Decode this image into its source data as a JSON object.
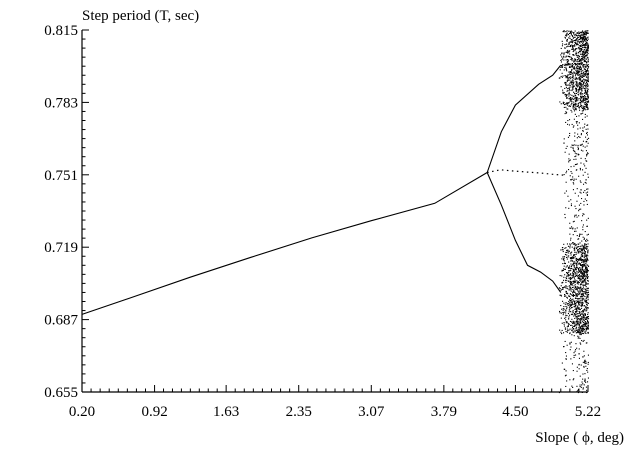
{
  "chart_data": {
    "type": "line",
    "title": "",
    "ylabel": "Step period (T, sec)",
    "xlabel": "Slope ( ϕ, deg)",
    "xlim": [
      0.2,
      5.22
    ],
    "ylim": [
      0.655,
      0.815
    ],
    "xticks": [
      "0.20",
      "0.92",
      "1.63",
      "2.35",
      "3.07",
      "3.79",
      "4.50",
      "5.22"
    ],
    "yticks": [
      "0.815",
      "0.783",
      "0.751",
      "0.719",
      "0.687",
      "0.655"
    ],
    "grid": false,
    "legend": "none",
    "series": [
      {
        "style": "solid",
        "x": [
          0.2,
          0.72,
          1.27,
          1.88,
          2.48,
          3.07,
          3.7,
          4.22
        ],
        "y": [
          0.6893,
          0.6972,
          0.7057,
          0.7146,
          0.7231,
          0.7307,
          0.7384,
          0.752
        ]
      },
      {
        "style": "solid",
        "x": [
          4.22,
          4.36,
          4.5,
          4.73,
          4.87,
          4.95
        ],
        "y": [
          0.752,
          0.77,
          0.7818,
          0.791,
          0.795,
          0.7995
        ]
      },
      {
        "style": "solid",
        "x": [
          4.22,
          4.36,
          4.5,
          4.62,
          4.75,
          4.87,
          4.95
        ],
        "y": [
          0.752,
          0.7377,
          0.722,
          0.711,
          0.708,
          0.704,
          0.699
        ]
      },
      {
        "style": "dotted",
        "x": [
          4.22,
          4.35,
          4.48,
          4.62,
          4.75,
          4.87,
          5.0
        ],
        "y": [
          0.752,
          0.7532,
          0.7527,
          0.7522,
          0.7518,
          0.7512,
          0.7508
        ]
      }
    ],
    "chaotic_region": {
      "x_start": 4.93,
      "x_end": 5.22,
      "y_min": 0.655,
      "y_max": 0.815
    }
  }
}
